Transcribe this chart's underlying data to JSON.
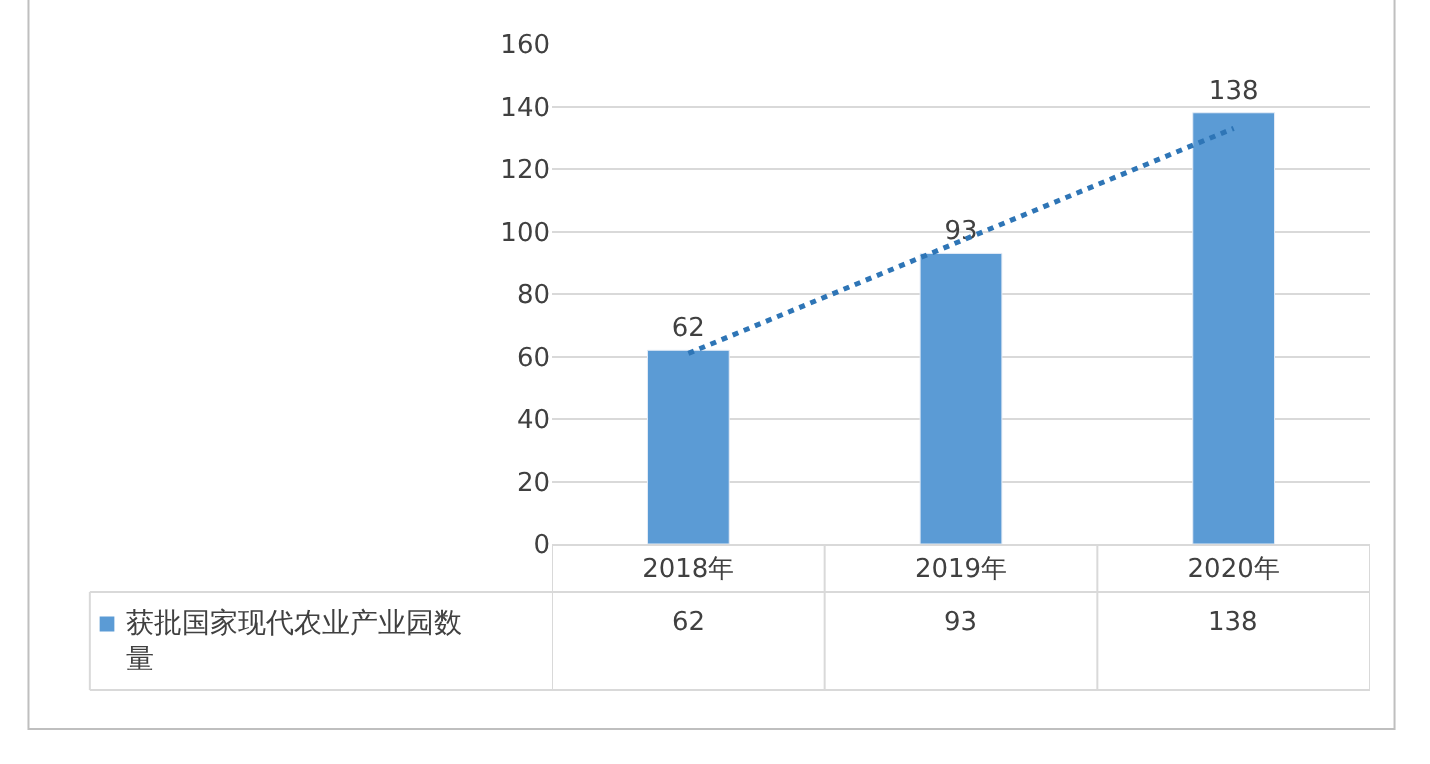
{
  "chart_data": {
    "type": "bar",
    "categories": [
      "2018年",
      "2019年",
      "2020年"
    ],
    "series": [
      {
        "name": "获批国家现代农业产业园数量",
        "color": "#5b9bd5",
        "values": [
          62,
          93,
          138
        ],
        "value_labels": [
          "62",
          "93",
          "138"
        ]
      },
      {
        "type": "line",
        "color": "#2e75b6",
        "line_style": "dotted",
        "marker": "none",
        "values": [
          61,
          97,
          133
        ]
      }
    ],
    "ylim": [
      0,
      160
    ],
    "yticks": [
      0,
      20,
      40,
      60,
      80,
      100,
      120,
      140,
      160
    ],
    "grid": "y"
  }
}
